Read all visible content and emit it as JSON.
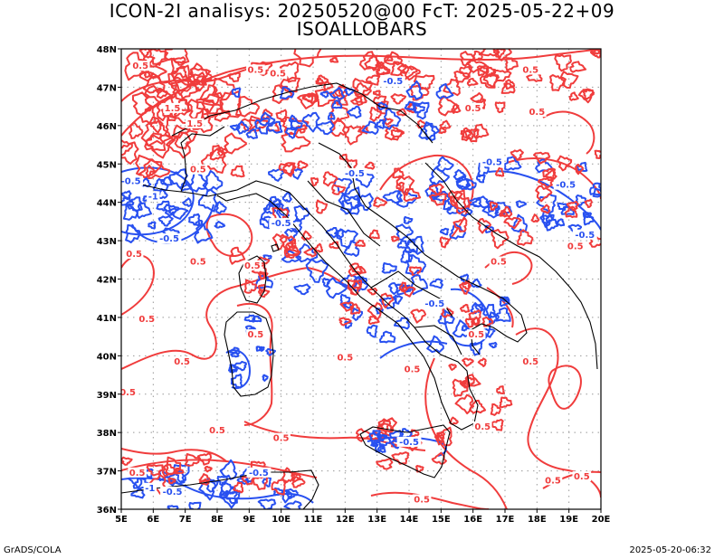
{
  "title_line1": "ICON-2I analisys: 20250520@00 FcT: 2025-05-22+09",
  "title_line2": "ISOALLOBARS",
  "footer_left": "GrADS/COLA",
  "footer_right": "2025-05-20-06:32",
  "colors": {
    "positive": "#f03c3c",
    "negative": "#2850f0",
    "coast": "#000000",
    "grid": "#999999"
  },
  "lat_labels": [
    "36N",
    "37N",
    "38N",
    "39N",
    "40N",
    "41N",
    "42N",
    "43N",
    "44N",
    "45N",
    "46N",
    "47N",
    "48N"
  ],
  "lon_labels": [
    "5E",
    "6E",
    "7E",
    "8E",
    "9E",
    "10E",
    "11E",
    "12E",
    "13E",
    "14E",
    "15E",
    "16E",
    "17E",
    "18E",
    "19E",
    "20E"
  ],
  "map": {
    "lon_range": [
      5,
      20
    ],
    "lat_range": [
      36,
      48
    ],
    "grid_step_deg": 1,
    "contour_labels": [
      {
        "text": "0.5",
        "lon": 5.6,
        "lat": 47.5,
        "sign": "pos"
      },
      {
        "text": "0.5",
        "lon": 9.2,
        "lat": 47.4,
        "sign": "pos"
      },
      {
        "text": "0.5",
        "lon": 9.9,
        "lat": 47.3,
        "sign": "pos"
      },
      {
        "text": "1.5",
        "lon": 6.6,
        "lat": 46.4,
        "sign": "pos"
      },
      {
        "text": "1.5",
        "lon": 7.3,
        "lat": 46.0,
        "sign": "pos"
      },
      {
        "text": "0.5",
        "lon": 7.4,
        "lat": 44.8,
        "sign": "pos"
      },
      {
        "text": "-0.5",
        "lon": 5.3,
        "lat": 44.5,
        "sign": "neg"
      },
      {
        "text": "-0.5",
        "lon": 6.5,
        "lat": 43.0,
        "sign": "neg"
      },
      {
        "text": "0.5",
        "lon": 5.4,
        "lat": 42.6,
        "sign": "pos"
      },
      {
        "text": "0.5",
        "lon": 7.4,
        "lat": 42.4,
        "sign": "pos"
      },
      {
        "text": "0.5",
        "lon": 9.1,
        "lat": 42.3,
        "sign": "pos"
      },
      {
        "text": "0.5",
        "lon": 5.8,
        "lat": 40.9,
        "sign": "pos"
      },
      {
        "text": "0.5",
        "lon": 9.2,
        "lat": 40.5,
        "sign": "pos"
      },
      {
        "text": "0.5",
        "lon": 6.9,
        "lat": 39.8,
        "sign": "pos"
      },
      {
        "text": "0.5",
        "lon": 12.0,
        "lat": 39.9,
        "sign": "pos"
      },
      {
        "text": "0.5",
        "lon": 5.2,
        "lat": 39.0,
        "sign": "pos"
      },
      {
        "text": "0.5",
        "lon": 14.1,
        "lat": 39.6,
        "sign": "pos"
      },
      {
        "text": "0.5",
        "lon": 16.1,
        "lat": 40.5,
        "sign": "pos"
      },
      {
        "text": "0.5",
        "lon": 17.8,
        "lat": 39.8,
        "sign": "pos"
      },
      {
        "text": "0.5",
        "lon": 16.3,
        "lat": 38.1,
        "sign": "pos"
      },
      {
        "text": "0.5",
        "lon": 10.0,
        "lat": 37.8,
        "sign": "pos"
      },
      {
        "text": "0.5",
        "lon": 8.0,
        "lat": 38.0,
        "sign": "pos"
      },
      {
        "text": "-0.5",
        "lon": 14.0,
        "lat": 37.7,
        "sign": "neg"
      },
      {
        "text": "-0.5",
        "lon": 10.0,
        "lat": 43.4,
        "sign": "neg"
      },
      {
        "text": "-0.5",
        "lon": 12.3,
        "lat": 44.7,
        "sign": "neg"
      },
      {
        "text": "-0.5",
        "lon": 14.8,
        "lat": 41.3,
        "sign": "neg"
      },
      {
        "text": "-0.5",
        "lon": 16.6,
        "lat": 45.0,
        "sign": "neg"
      },
      {
        "text": "-0.5",
        "lon": 18.9,
        "lat": 44.4,
        "sign": "neg"
      },
      {
        "text": "-0.5",
        "lon": 19.5,
        "lat": 43.1,
        "sign": "neg"
      },
      {
        "text": "-0.5",
        "lon": 13.5,
        "lat": 47.1,
        "sign": "neg"
      },
      {
        "text": "0.5",
        "lon": 16.8,
        "lat": 42.4,
        "sign": "pos"
      },
      {
        "text": "0.5",
        "lon": 19.2,
        "lat": 42.8,
        "sign": "pos"
      },
      {
        "text": "0.5",
        "lon": 16.0,
        "lat": 46.4,
        "sign": "pos"
      },
      {
        "text": "0.5",
        "lon": 18.0,
        "lat": 46.3,
        "sign": "pos"
      },
      {
        "text": "0.5",
        "lon": 17.8,
        "lat": 47.4,
        "sign": "pos"
      },
      {
        "text": "0.5",
        "lon": 19.4,
        "lat": 36.8,
        "sign": "pos"
      },
      {
        "text": "0.5",
        "lon": 18.5,
        "lat": 36.7,
        "sign": "pos"
      },
      {
        "text": "0.5",
        "lon": 14.4,
        "lat": 36.2,
        "sign": "pos"
      },
      {
        "text": "0.5",
        "lon": 5.5,
        "lat": 36.9,
        "sign": "pos"
      },
      {
        "text": "-0.5",
        "lon": 6.6,
        "lat": 36.4,
        "sign": "neg"
      },
      {
        "text": "-0.5",
        "lon": 9.3,
        "lat": 36.9,
        "sign": "neg"
      },
      {
        "text": "-1",
        "lon": 5.9,
        "lat": 36.5,
        "sign": "neg"
      },
      {
        "text": "-1",
        "lon": 6.0,
        "lat": 44.1,
        "sign": "neg"
      }
    ]
  }
}
